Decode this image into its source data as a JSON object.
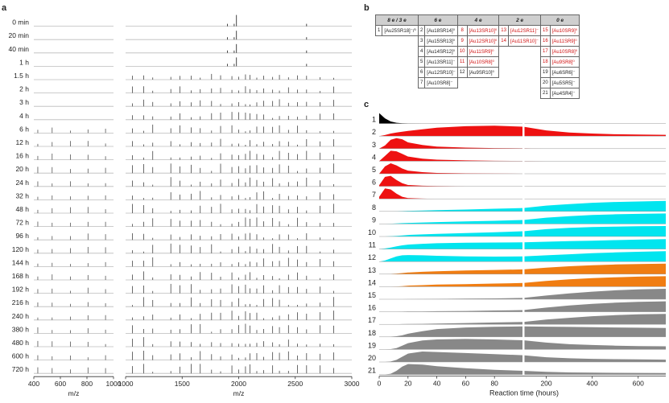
{
  "panels": {
    "a": "a",
    "b": "b",
    "c": "c"
  },
  "panel_a": {
    "time_labels": [
      "0 min",
      "20 min",
      "40 min",
      "1 h",
      "1.5 h",
      "2 h",
      "3 h",
      "4 h",
      "6 h",
      "12 h",
      "16 h",
      "20 h",
      "24 h",
      "32 h",
      "48 h",
      "72 h",
      "96 h",
      "120 h",
      "144 h",
      "168 h",
      "192 h",
      "216 h",
      "240 h",
      "380 h",
      "480 h",
      "600 h",
      "720 h"
    ],
    "left_axis": {
      "ticks": [
        "400",
        "600",
        "800",
        "1000"
      ],
      "xlabel": "m/z",
      "xlim": [
        400,
        1000
      ]
    },
    "right_axis": {
      "ticks": [
        "1000",
        "1500",
        "2000",
        "2500",
        "3000"
      ],
      "xlabel": "m/z",
      "xlim": [
        1000,
        3000
      ]
    }
  },
  "panel_b": {
    "headers": [
      "8 e / 3 e",
      "6 e",
      "4 e",
      "2 e",
      "0 e"
    ],
    "col1": [
      {
        "n": "1",
        "f": "[Au25SR18]⁻/⁰"
      }
    ],
    "col2": [
      {
        "n": "2",
        "f": "[Au18SR14]⁰"
      },
      {
        "n": "3",
        "f": "[Au15SR13]⁰"
      },
      {
        "n": "4",
        "f": "[Au14SR12]⁰"
      },
      {
        "n": "5",
        "f": "[Au13SR11]⁻"
      },
      {
        "n": "6",
        "f": "[Au12SR10]⁻"
      },
      {
        "n": "7",
        "f": "[Au10SR8]⁻"
      }
    ],
    "col3": [
      {
        "n": "8",
        "f": "[Au13SR10]⁰",
        "red": true
      },
      {
        "n": "9",
        "f": "[Au12SR10]⁰",
        "red": true
      },
      {
        "n": "10",
        "f": "[Au11SR9]⁰",
        "red": true
      },
      {
        "n": "11",
        "f": "[Au10SR8]⁰",
        "red": true
      },
      {
        "n": "12",
        "f": "[Au9SR10]⁰",
        "red": false
      }
    ],
    "col4": [
      {
        "n": "13",
        "f": "[Au12SR11]⁻",
        "red": true
      },
      {
        "n": "14",
        "f": "[Au11SR10]⁻",
        "red": true
      }
    ],
    "col5": [
      {
        "n": "15",
        "f": "[Au10SR9]⁰",
        "red": true
      },
      {
        "n": "16",
        "f": "[Au11SR9]⁰",
        "red": true
      },
      {
        "n": "17",
        "f": "[Au10SR8]⁰",
        "red": true
      },
      {
        "n": "18",
        "f": "[Au9SR8]⁰",
        "red": true
      },
      {
        "n": "19",
        "f": "[Au6SR6]⁻",
        "red": false
      },
      {
        "n": "20",
        "f": "[Au5SR5]⁻",
        "red": false
      },
      {
        "n": "21",
        "f": "[Au4SR4]⁻",
        "red": false
      }
    ]
  },
  "chart_data": {
    "type": "area",
    "xlabel": "Reaction time (hours)",
    "segments": [
      {
        "xlim": [
          0,
          100
        ],
        "ticks": [
          0,
          20,
          40,
          60,
          80
        ]
      },
      {
        "xlim": [
          100,
          720
        ],
        "ticks": [
          200,
          400,
          600
        ]
      }
    ],
    "x": [
      0,
      4,
      8,
      12,
      16,
      20,
      30,
      40,
      60,
      80,
      100,
      200,
      300,
      400,
      500,
      600,
      720
    ],
    "colors": {
      "black": "#000000",
      "red": "#ee1111",
      "cyan": "#00e5ef",
      "orange": "#f07d12",
      "gray": "#888888"
    },
    "series": [
      {
        "name": "1",
        "color": "black",
        "values": [
          1.0,
          0.5,
          0.2,
          0.08,
          0.03,
          0.01,
          0,
          0,
          0,
          0,
          0,
          0,
          0,
          0,
          0,
          0,
          0
        ]
      },
      {
        "name": "2",
        "color": "red",
        "values": [
          0,
          0.1,
          0.25,
          0.35,
          0.42,
          0.5,
          0.65,
          0.8,
          0.95,
          1.0,
          0.9,
          0.55,
          0.35,
          0.25,
          0.18,
          0.15,
          0.12
        ]
      },
      {
        "name": "3",
        "color": "red",
        "values": [
          0,
          0.3,
          0.85,
          1.0,
          0.9,
          0.6,
          0.35,
          0.2,
          0.1,
          0.05,
          0.03,
          0.01,
          0,
          0,
          0,
          0,
          0
        ]
      },
      {
        "name": "4",
        "color": "red",
        "values": [
          0,
          0.5,
          1.0,
          0.95,
          0.7,
          0.45,
          0.25,
          0.15,
          0.08,
          0.04,
          0.02,
          0,
          0,
          0,
          0,
          0,
          0
        ]
      },
      {
        "name": "5",
        "color": "red",
        "values": [
          0,
          0.7,
          1.0,
          0.8,
          0.5,
          0.3,
          0.15,
          0.08,
          0.04,
          0.02,
          0,
          0,
          0,
          0,
          0,
          0,
          0
        ]
      },
      {
        "name": "6",
        "color": "red",
        "values": [
          0.1,
          0.9,
          1.0,
          0.6,
          0.3,
          0.12,
          0.05,
          0.02,
          0,
          0,
          0,
          0,
          0,
          0,
          0,
          0,
          0
        ]
      },
      {
        "name": "7",
        "color": "red",
        "values": [
          0.2,
          1.0,
          0.9,
          0.5,
          0.2,
          0.08,
          0.02,
          0,
          0,
          0,
          0,
          0,
          0,
          0,
          0,
          0,
          0
        ]
      },
      {
        "name": "8",
        "color": "cyan",
        "values": [
          0,
          0,
          0,
          0.02,
          0.03,
          0.05,
          0.08,
          0.12,
          0.18,
          0.25,
          0.32,
          0.55,
          0.7,
          0.82,
          0.9,
          0.95,
          1.0
        ]
      },
      {
        "name": "9",
        "color": "cyan",
        "values": [
          0,
          0,
          0.02,
          0.05,
          0.08,
          0.1,
          0.14,
          0.18,
          0.24,
          0.3,
          0.38,
          0.6,
          0.75,
          0.85,
          0.92,
          0.96,
          1.0
        ]
      },
      {
        "name": "10",
        "color": "cyan",
        "values": [
          0,
          0,
          0.03,
          0.06,
          0.1,
          0.15,
          0.2,
          0.25,
          0.32,
          0.4,
          0.5,
          0.7,
          0.82,
          0.9,
          0.95,
          0.98,
          1.0
        ]
      },
      {
        "name": "11",
        "color": "cyan",
        "values": [
          0,
          0.05,
          0.15,
          0.25,
          0.35,
          0.42,
          0.5,
          0.55,
          0.6,
          0.62,
          0.65,
          0.7,
          0.75,
          0.8,
          0.85,
          0.9,
          0.95
        ]
      },
      {
        "name": "12",
        "color": "cyan",
        "values": [
          0,
          0.1,
          0.3,
          0.5,
          0.6,
          0.62,
          0.6,
          0.55,
          0.5,
          0.48,
          0.5,
          0.6,
          0.7,
          0.8,
          0.88,
          0.94,
          1.0
        ]
      },
      {
        "name": "13",
        "color": "orange",
        "values": [
          0,
          0,
          0.02,
          0.05,
          0.1,
          0.15,
          0.22,
          0.28,
          0.35,
          0.4,
          0.45,
          0.62,
          0.75,
          0.85,
          0.92,
          0.96,
          1.0
        ]
      },
      {
        "name": "14",
        "color": "orange",
        "values": [
          0,
          0,
          0,
          0.02,
          0.05,
          0.1,
          0.15,
          0.2,
          0.25,
          0.3,
          0.35,
          0.55,
          0.7,
          0.82,
          0.9,
          0.96,
          1.0
        ]
      },
      {
        "name": "15",
        "color": "gray",
        "values": [
          0,
          0,
          0,
          0,
          0,
          0.01,
          0.02,
          0.03,
          0.05,
          0.08,
          0.12,
          0.35,
          0.55,
          0.72,
          0.85,
          0.94,
          1.0
        ]
      },
      {
        "name": "16",
        "color": "gray",
        "values": [
          0,
          0,
          0,
          0,
          0.01,
          0.02,
          0.03,
          0.05,
          0.08,
          0.12,
          0.16,
          0.4,
          0.6,
          0.75,
          0.87,
          0.95,
          1.0
        ]
      },
      {
        "name": "17",
        "color": "gray",
        "values": [
          0,
          0,
          0,
          0.01,
          0.02,
          0.03,
          0.05,
          0.08,
          0.12,
          0.18,
          0.22,
          0.45,
          0.62,
          0.78,
          0.88,
          0.95,
          1.0
        ]
      },
      {
        "name": "18",
        "color": "gray",
        "values": [
          0,
          0,
          0.02,
          0.06,
          0.15,
          0.3,
          0.55,
          0.75,
          0.9,
          0.97,
          1.0,
          0.98,
          0.95,
          0.92,
          0.9,
          0.88,
          0.85
        ]
      },
      {
        "name": "19",
        "color": "gray",
        "values": [
          0,
          0,
          0.03,
          0.12,
          0.35,
          0.6,
          0.85,
          0.95,
          1.0,
          0.95,
          0.88,
          0.65,
          0.5,
          0.42,
          0.36,
          0.32,
          0.3
        ]
      },
      {
        "name": "20",
        "color": "gray",
        "values": [
          0,
          0,
          0.05,
          0.2,
          0.5,
          0.8,
          1.0,
          0.95,
          0.85,
          0.75,
          0.65,
          0.45,
          0.35,
          0.3,
          0.27,
          0.25,
          0.22
        ]
      },
      {
        "name": "21",
        "color": "gray",
        "values": [
          0,
          0,
          0.08,
          0.35,
          0.75,
          1.0,
          0.95,
          0.8,
          0.6,
          0.45,
          0.35,
          0.25,
          0.2,
          0.18,
          0.16,
          0.15,
          0.14
        ]
      }
    ]
  }
}
